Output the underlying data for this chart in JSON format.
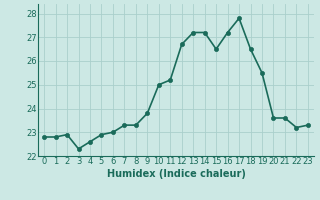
{
  "x": [
    0,
    1,
    2,
    3,
    4,
    5,
    6,
    7,
    8,
    9,
    10,
    11,
    12,
    13,
    14,
    15,
    16,
    17,
    18,
    19,
    20,
    21,
    22,
    23
  ],
  "y": [
    22.8,
    22.8,
    22.9,
    22.3,
    22.6,
    22.9,
    23.0,
    23.3,
    23.3,
    23.8,
    25.0,
    25.2,
    26.7,
    27.2,
    27.2,
    26.5,
    27.2,
    27.8,
    26.5,
    25.5,
    23.6,
    23.6,
    23.2,
    23.3
  ],
  "line_color": "#1a6b5a",
  "marker_color": "#1a6b5a",
  "bg_color": "#cce8e4",
  "grid_color": "#aacfcc",
  "xlabel": "Humidex (Indice chaleur)",
  "ylim": [
    22,
    28.4
  ],
  "yticks": [
    22,
    23,
    24,
    25,
    26,
    27,
    28
  ],
  "xlim": [
    -0.5,
    23.5
  ],
  "xtick_labels": [
    "0",
    "1",
    "2",
    "3",
    "4",
    "5",
    "6",
    "7",
    "8",
    "9",
    "10",
    "11",
    "12",
    "13",
    "14",
    "15",
    "16",
    "17",
    "18",
    "19",
    "20",
    "21",
    "22",
    "23"
  ],
  "line_width": 1.2,
  "marker_size": 3.0,
  "tick_fontsize": 6.0,
  "xlabel_fontsize": 7.0
}
